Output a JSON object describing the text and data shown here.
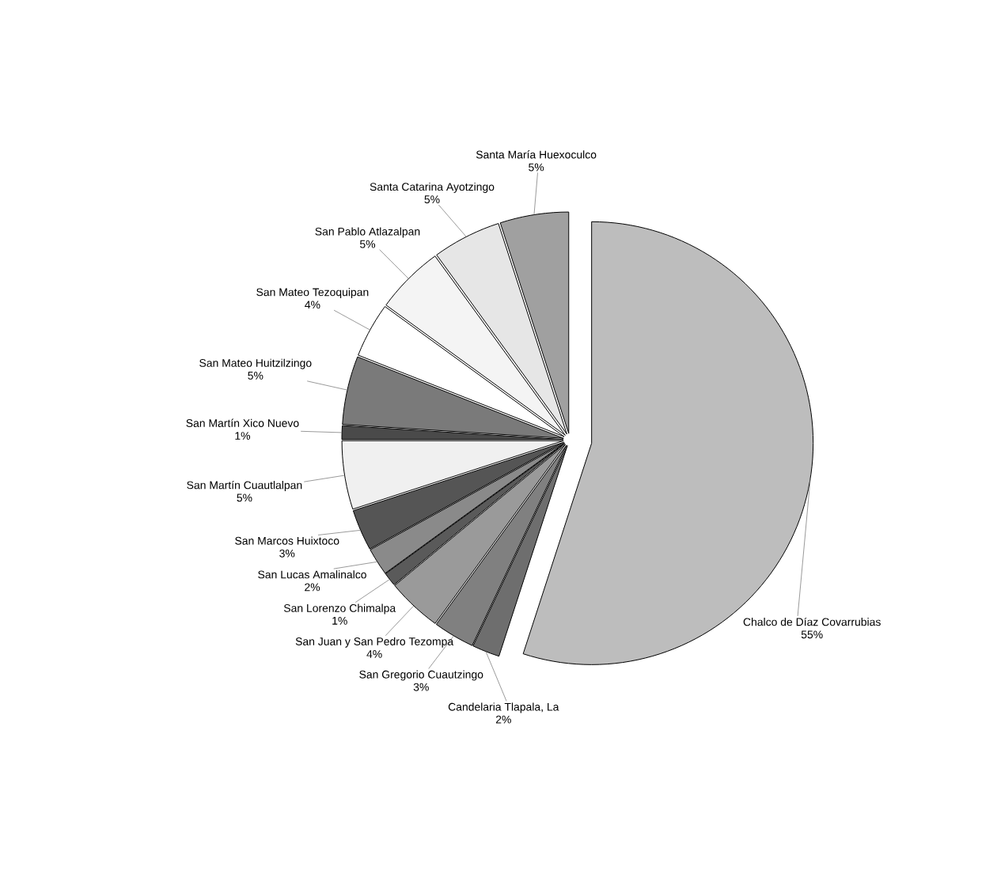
{
  "chart_data": {
    "type": "pie",
    "categories": [
      "Chalco de Díaz Covarrubias",
      "Candelaria Tlapala, La",
      "San Gregorio Cuautzingo",
      "San Juan y San Pedro Tezompa",
      "San Lorenzo Chimalpa",
      "San Lucas Amalinalco",
      "San Marcos Huixtoco",
      "San Martín Cuautlalpan",
      "San Martín Xico Nuevo",
      "San Mateo Huitzilzingo",
      "San Mateo Tezoquipan",
      "San Pablo Atlazalpan",
      "Santa Catarina Ayotzingo",
      "Santa María Huexoculco"
    ],
    "values": [
      55,
      2,
      3,
      4,
      1,
      2,
      3,
      5,
      1,
      5,
      4,
      5,
      5,
      5
    ],
    "value_labels": [
      "55%",
      "2%",
      "3%",
      "4%",
      "1%",
      "2%",
      "3%",
      "5%",
      "1%",
      "5%",
      "4%",
      "5%",
      "5%",
      "5%"
    ],
    "colors": [
      "#bdbdbd",
      "#6e6e6e",
      "#808080",
      "#9a9a9a",
      "#5a5a5a",
      "#8a8a8a",
      "#555555",
      "#f0f0f0",
      "#4a4a4a",
      "#7a7a7a",
      "#ffffff",
      "#f4f4f4",
      "#e6e6e6",
      "#a0a0a0"
    ]
  }
}
